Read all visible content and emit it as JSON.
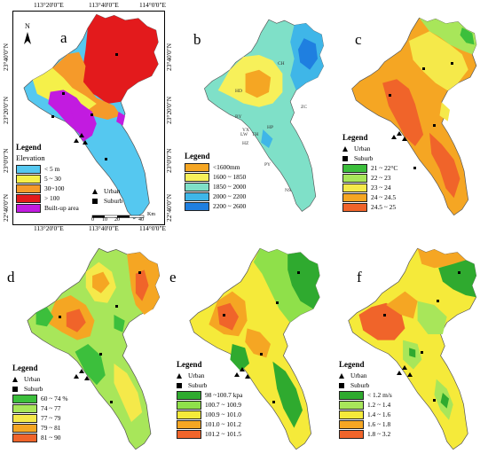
{
  "panel_a": {
    "letter": "a",
    "top_coords": [
      "113°20'0\"E",
      "113°40'0\"E",
      "114°0'0\"E"
    ],
    "bottom_coords": [
      "113°20'0\"E",
      "113°40'0\"E",
      "114°0'0\"E"
    ],
    "left_coords": [
      "23°40'0\"N",
      "23°20'0\"N",
      "23°0'0\"N",
      "22°40'0\"N"
    ],
    "right_coords": [
      "23°40'0\"N",
      "23°20'0\"N",
      "23°0'0\"N",
      "22°40'0\"N"
    ],
    "north": "N",
    "legend_title": "Legend",
    "legend_subtitle": "Elevation",
    "items": [
      {
        "label": "< 5 m",
        "color": "#55c8f0"
      },
      {
        "label": "5 ~ 30",
        "color": "#f5f04a"
      },
      {
        "label": "30~100",
        "color": "#f59a2a"
      },
      {
        "label": "> 100",
        "color": "#e31a1c"
      },
      {
        "label": "Built-up area",
        "color": "#c21be0"
      }
    ],
    "urban_label": "Urban",
    "suburb_label": "Suburb",
    "scale_ticks": [
      "0",
      "10",
      "20",
      "40"
    ],
    "scale_unit": "Km"
  },
  "panel_b": {
    "letter": "b",
    "district_labels": [
      "CH",
      "HD",
      "ZC",
      "BY",
      "HP",
      "TH",
      "YX",
      "LW",
      "HZ",
      "PY",
      "NS"
    ],
    "legend_title": "Legend",
    "items": [
      {
        "label": "<1600mm",
        "color": "#f5a623"
      },
      {
        "label": "1600 ~ 1850",
        "color": "#f7f05a"
      },
      {
        "label": "1850 ~ 2000",
        "color": "#7fe0c8"
      },
      {
        "label": "2000 ~ 2200",
        "color": "#3fb6e8"
      },
      {
        "label": "2200 ~ 2600",
        "color": "#1f7fe0"
      }
    ]
  },
  "panel_c": {
    "letter": "c",
    "legend_title": "Legend",
    "urban_label": "Urban",
    "suburb_label": "Suburb",
    "items": [
      {
        "label": "21 ~ 22°C",
        "color": "#3cbf3c"
      },
      {
        "label": "22 ~ 23",
        "color": "#a8e65a"
      },
      {
        "label": "23 ~ 24",
        "color": "#f5e94a"
      },
      {
        "label": "24 ~ 24.5",
        "color": "#f5a623"
      },
      {
        "label": "24.5 ~ 25",
        "color": "#f0642a"
      }
    ]
  },
  "panel_d": {
    "letter": "d",
    "legend_title": "Legend",
    "urban_label": "Urban",
    "suburb_label": "Suburb",
    "items": [
      {
        "label": "60 ~ 74 %",
        "color": "#3cbf3c"
      },
      {
        "label": "74 ~ 77",
        "color": "#a8e65a"
      },
      {
        "label": "77 ~ 79",
        "color": "#f5e94a"
      },
      {
        "label": "79 ~ 81",
        "color": "#f5a623"
      },
      {
        "label": "81 ~ 90",
        "color": "#f0642a"
      }
    ]
  },
  "panel_e": {
    "letter": "e",
    "legend_title": "Legend",
    "urban_label": "Urban",
    "suburb_label": "Suburb",
    "items": [
      {
        "label": "98 ~100.7 kpa",
        "color": "#2faa2f"
      },
      {
        "label": "100.7 ~ 100.9",
        "color": "#8fe04a"
      },
      {
        "label": "100.9 ~ 101.0",
        "color": "#f5ea3a"
      },
      {
        "label": "101.0 ~ 101.2",
        "color": "#f5a623"
      },
      {
        "label": "101.2 ~ 101.5",
        "color": "#f0642a"
      }
    ]
  },
  "panel_f": {
    "letter": "f",
    "legend_title": "Legend",
    "urban_label": "Urban",
    "suburb_label": "Suburb",
    "items": [
      {
        "label": "< 1.2 m/s",
        "color": "#2faa2f"
      },
      {
        "label": "1.2 ~ 1.4",
        "color": "#a8e65a"
      },
      {
        "label": "1.4 ~ 1.6",
        "color": "#f5ea3a"
      },
      {
        "label": "1.6 ~ 1.8",
        "color": "#f5a623"
      },
      {
        "label": "1.8 ~ 3.2",
        "color": "#f0642a"
      }
    ]
  }
}
